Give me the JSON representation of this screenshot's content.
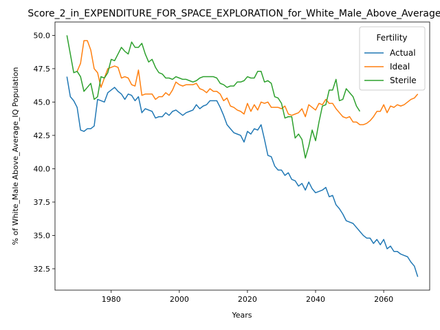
{
  "chart_data": {
    "type": "line",
    "title": "Score_2_in_EXPENDITURE_FOR_SPACE_EXPLORATION_for_White_Male_Above_Average_IQ",
    "xlabel": "Years",
    "ylabel": "% of White_Male Above_Average_IQ Population",
    "xlim": [
      1963.5,
      2073.5
    ],
    "ylim": [
      30.9,
      51.0
    ],
    "xticks": [
      1980,
      2000,
      2020,
      2040,
      2060
    ],
    "yticks": [
      32.5,
      35.0,
      37.5,
      40.0,
      42.5,
      45.0,
      47.5,
      50.0
    ],
    "ytick_labels": [
      "32.5",
      "35.0",
      "37.5",
      "40.0",
      "42.5",
      "45.0",
      "47.5",
      "50.0"
    ],
    "grid": false,
    "legend": {
      "title": "Fertility",
      "position": "top-right"
    },
    "series": [
      {
        "name": "Actual",
        "color": "#1f77b4",
        "x": [
          1967,
          1968,
          1969,
          1970,
          1971,
          1972,
          1973,
          1974,
          1975,
          1976,
          1977,
          1978,
          1979,
          1980,
          1981,
          1982,
          1983,
          1984,
          1985,
          1986,
          1987,
          1988,
          1989,
          1990,
          1991,
          1992,
          1993,
          1994,
          1995,
          1996,
          1997,
          1998,
          1999,
          2000,
          2001,
          2002,
          2003,
          2004,
          2005,
          2006,
          2007,
          2008,
          2009,
          2010,
          2011,
          2012,
          2013,
          2014,
          2015,
          2016,
          2017,
          2018,
          2019,
          2020,
          2021,
          2022,
          2023,
          2024,
          2025,
          2026,
          2027,
          2028,
          2029,
          2030,
          2031,
          2032,
          2033,
          2034,
          2035,
          2036,
          2037,
          2038,
          2039,
          2040,
          2041,
          2042,
          2043,
          2044,
          2045,
          2046,
          2047,
          2048,
          2049,
          2050,
          2051,
          2052,
          2053,
          2054,
          2055,
          2056,
          2057,
          2058,
          2059,
          2060,
          2061,
          2062,
          2063,
          2064,
          2065,
          2066,
          2067,
          2068,
          2069,
          2070
        ],
        "y": [
          46.9,
          45.4,
          45.1,
          44.6,
          42.9,
          42.8,
          43.0,
          43.0,
          43.2,
          45.2,
          45.1,
          45.0,
          45.7,
          45.9,
          46.1,
          45.8,
          45.6,
          45.2,
          45.6,
          45.5,
          45.1,
          45.4,
          44.2,
          44.5,
          44.4,
          44.3,
          43.8,
          43.9,
          43.9,
          44.2,
          44.0,
          44.3,
          44.4,
          44.2,
          44.0,
          44.2,
          44.3,
          44.4,
          44.8,
          44.5,
          44.7,
          44.8,
          45.1,
          45.1,
          45.1,
          44.6,
          44.0,
          43.3,
          43.0,
          42.7,
          42.6,
          42.5,
          42.0,
          42.8,
          42.6,
          43.0,
          42.9,
          43.3,
          42.2,
          41.0,
          40.9,
          40.2,
          39.9,
          39.9,
          39.5,
          39.7,
          39.2,
          39.1,
          38.7,
          38.9,
          38.4,
          39.0,
          38.5,
          38.2,
          38.3,
          38.4,
          38.6,
          37.9,
          38.0,
          37.3,
          37.0,
          36.6,
          36.1,
          36.0,
          35.9,
          35.6,
          35.3,
          35.0,
          34.8,
          34.8,
          34.4,
          34.7,
          34.3,
          34.7,
          34.0,
          34.2,
          33.8,
          33.8,
          33.6,
          33.5,
          33.4,
          33.0,
          32.7,
          31.9
        ]
      },
      {
        "name": "Ideal",
        "color": "#ff7f0e",
        "x": [
          1970,
          1971,
          1972,
          1973,
          1974,
          1975,
          1976,
          1977,
          1978,
          1979,
          1980,
          1981,
          1982,
          1983,
          1984,
          1985,
          1986,
          1987,
          1988,
          1989,
          1990,
          1991,
          1992,
          1993,
          1994,
          1995,
          1996,
          1997,
          1998,
          1999,
          2000,
          2001,
          2002,
          2003,
          2004,
          2005,
          2006,
          2007,
          2008,
          2009,
          2010,
          2011,
          2012,
          2013,
          2014,
          2015,
          2016,
          2017,
          2018,
          2019,
          2020,
          2021,
          2022,
          2023,
          2024,
          2025,
          2026,
          2027,
          2028,
          2029,
          2030,
          2031,
          2032,
          2033,
          2034,
          2035,
          2036,
          2037,
          2038,
          2039,
          2040,
          2041,
          2042,
          2043,
          2044,
          2045,
          2046,
          2047,
          2048,
          2049,
          2050,
          2051,
          2052,
          2053,
          2054,
          2055,
          2056,
          2057,
          2058,
          2059,
          2060,
          2061,
          2062,
          2063,
          2064,
          2065,
          2066,
          2067,
          2068,
          2069,
          2070
        ],
        "y": [
          47.3,
          47.9,
          49.6,
          49.6,
          48.9,
          47.5,
          47.2,
          46.1,
          46.8,
          47.5,
          47.6,
          47.7,
          47.6,
          46.8,
          46.9,
          46.8,
          46.3,
          46.2,
          47.4,
          45.5,
          45.6,
          45.6,
          45.6,
          45.2,
          45.4,
          45.4,
          45.7,
          45.5,
          45.9,
          46.5,
          46.3,
          46.2,
          46.3,
          46.3,
          46.3,
          46.4,
          46.0,
          45.9,
          45.7,
          46.0,
          45.8,
          45.8,
          45.6,
          45.1,
          45.3,
          44.7,
          44.6,
          44.4,
          44.3,
          44.1,
          44.9,
          44.3,
          44.8,
          44.4,
          45.0,
          44.9,
          45.0,
          44.6,
          44.6,
          44.6,
          44.5,
          44.7,
          44.1,
          44.0,
          44.1,
          44.2,
          44.5,
          43.9,
          44.8,
          44.6,
          44.4,
          44.9,
          44.8,
          45.2,
          44.9,
          44.9,
          44.5,
          44.2,
          43.9,
          43.8,
          43.9,
          43.5,
          43.5,
          43.3,
          43.3,
          43.4,
          43.6,
          43.9,
          44.3,
          44.3,
          44.8,
          44.2,
          44.7,
          44.6,
          44.8,
          44.7,
          44.8,
          45.0,
          45.2,
          45.3,
          45.6
        ]
      },
      {
        "name": "Sterile",
        "color": "#2ca02c",
        "x": [
          1967,
          1968,
          1969,
          1970,
          1971,
          1972,
          1973,
          1974,
          1975,
          1976,
          1977,
          1978,
          1979,
          1980,
          1981,
          1982,
          1983,
          1984,
          1985,
          1986,
          1987,
          1988,
          1989,
          1990,
          1991,
          1992,
          1993,
          1994,
          1995,
          1996,
          1997,
          1998,
          1999,
          2000,
          2001,
          2002,
          2003,
          2004,
          2005,
          2006,
          2007,
          2008,
          2009,
          2010,
          2011,
          2012,
          2013,
          2014,
          2015,
          2016,
          2017,
          2018,
          2019,
          2020,
          2021,
          2022,
          2023,
          2024,
          2025,
          2026,
          2027,
          2028,
          2029,
          2030,
          2031,
          2032,
          2033,
          2034,
          2035,
          2036,
          2037,
          2038,
          2039,
          2040,
          2041,
          2042,
          2043,
          2044,
          2045,
          2046,
          2047,
          2048,
          2049,
          2050,
          2051,
          2052,
          2053
        ],
        "y": [
          50.0,
          48.6,
          47.2,
          47.3,
          46.9,
          45.8,
          46.1,
          46.4,
          45.2,
          45.4,
          46.9,
          46.8,
          47.2,
          48.2,
          48.1,
          48.6,
          49.1,
          48.8,
          48.6,
          49.5,
          49.1,
          49.1,
          49.4,
          48.6,
          48.0,
          48.2,
          47.6,
          47.2,
          47.1,
          46.8,
          46.8,
          46.7,
          46.9,
          46.8,
          46.7,
          46.7,
          46.6,
          46.5,
          46.6,
          46.8,
          46.9,
          46.9,
          46.9,
          46.9,
          46.8,
          46.4,
          46.3,
          46.1,
          46.2,
          46.2,
          46.5,
          46.5,
          46.6,
          46.9,
          46.8,
          46.8,
          47.3,
          47.3,
          46.5,
          46.6,
          46.4,
          45.4,
          45.3,
          44.9,
          43.8,
          43.9,
          43.9,
          42.3,
          42.6,
          42.2,
          40.8,
          41.7,
          42.9,
          42.1,
          43.5,
          44.7,
          44.8,
          45.9,
          45.9,
          46.7,
          45.1,
          45.2,
          46.0,
          45.7,
          45.4,
          44.7,
          44.3
        ]
      }
    ]
  }
}
